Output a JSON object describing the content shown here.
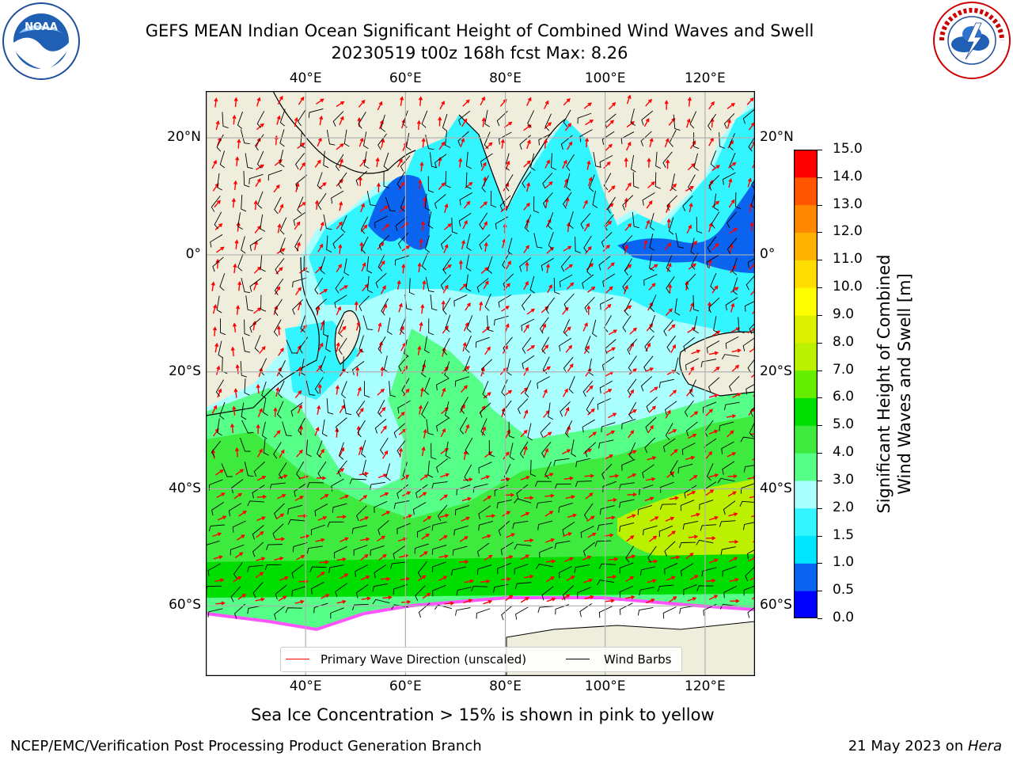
{
  "title": {
    "line1": "GEFS MEAN Indian Ocean Significant Height of Combined Wind Waves and Swell",
    "line2": "20230519 t00z 168h fcst   Max: 8.26"
  },
  "logos": {
    "left": {
      "text": "NOAA",
      "ring_text": "NATIONAL OCEANIC AND ATMOSPHERIC ADMINISTRATION · U.S. DEPARTMENT OF COMMERCE",
      "icon": "noaa-logo"
    },
    "right": {
      "text": "NATIONAL WEATHER SERVICE",
      "icon": "nws-logo"
    }
  },
  "map": {
    "lon_range": [
      20,
      130
    ],
    "lat_range": [
      -72,
      28
    ],
    "lon_ticks": [
      "40°E",
      "60°E",
      "80°E",
      "100°E",
      "120°E"
    ],
    "lat_ticks_left": [
      "20°N",
      "0°",
      "20°S",
      "40°S",
      "60°S"
    ],
    "lat_ticks_right": [
      "20°N",
      "0°",
      "20°S",
      "40°S",
      "60°S"
    ],
    "grid": true,
    "colors": {
      "land": "#efeedc",
      "ice": "#ffffff"
    }
  },
  "legend": {
    "wave_label": "Primary Wave Direction (unscaled)",
    "wind_label": "Wind Barbs",
    "wave_color": "#ff0000",
    "wind_color": "#000000"
  },
  "colorbar": {
    "label_line1": "Significant Height of Combined",
    "label_line2": "Wind Waves and Swell [m]",
    "ticks": [
      "0.0",
      "0.5",
      "1.0",
      "1.5",
      "2.0",
      "3.0",
      "4.0",
      "5.0",
      "6.0",
      "7.0",
      "8.0",
      "9.0",
      "10.0",
      "11.0",
      "12.0",
      "13.0",
      "14.0",
      "15.0"
    ],
    "colors": [
      "#0000ff",
      "#0a64f0",
      "#00e6ff",
      "#33f5ff",
      "#aaffff",
      "#55ff88",
      "#3dea3d",
      "#00dd00",
      "#66ee00",
      "#bbf000",
      "#ddf000",
      "#ffff00",
      "#ffdd00",
      "#ffb000",
      "#ff8800",
      "#ff5500",
      "#ff0000"
    ]
  },
  "caption": "Sea Ice Concentration > 15% is shown in pink to yellow",
  "footer": {
    "left": "NCEP/EMC/Verification Post Processing Product Generation Branch",
    "right_prefix": "21 May 2023 on ",
    "right_host": "Hera"
  }
}
